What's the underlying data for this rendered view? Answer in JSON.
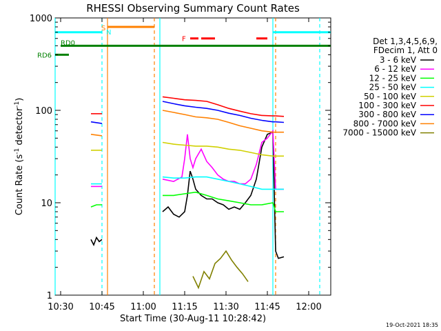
{
  "chart_data": {
    "type": "line",
    "title": "RHESSI Observing Summary Count Rates",
    "xlabel": "Start Time (30-Aug-11 10:28:42)",
    "ylabel_main": "Count Rate (s",
    "ylabel_sup1": "-1",
    "ylabel_mid": " detector",
    "ylabel_sup2": "-1",
    "ylabel_end": ")",
    "y_scale": "log",
    "ylim": [
      1,
      1000
    ],
    "xlim": [
      "10:28",
      "12:08"
    ],
    "x_ticks": [
      "10:30",
      "10:45",
      "11:00",
      "11:15",
      "11:30",
      "11:45",
      "12:00"
    ],
    "y_ticks": [
      "1",
      "10",
      "100",
      "1000"
    ],
    "legend_header": [
      "Det 1,3,4,5,6,9,",
      "FDecim 1, Att 0"
    ],
    "series": [
      {
        "name": "3 - 6 keV",
        "color": "#000000",
        "segments": [
          [
            [
              "10:41",
              4
            ],
            [
              "10:42",
              3.5
            ],
            [
              "10:43",
              4.2
            ],
            [
              "10:44",
              3.8
            ],
            [
              "10:45",
              4.0
            ]
          ],
          [
            [
              "11:07",
              8
            ],
            [
              "11:09",
              9
            ],
            [
              "11:11",
              7.5
            ],
            [
              "11:13",
              7
            ],
            [
              "11:15",
              8
            ],
            [
              "11:16",
              12
            ],
            [
              "11:17",
              22
            ],
            [
              "11:18",
              18
            ],
            [
              "11:19",
              14
            ],
            [
              "11:21",
              12
            ],
            [
              "11:23",
              11
            ],
            [
              "11:25",
              11
            ],
            [
              "11:27",
              10
            ],
            [
              "11:29",
              9.5
            ],
            [
              "11:31",
              8.5
            ],
            [
              "11:33",
              9
            ],
            [
              "11:35",
              8.5
            ],
            [
              "11:37",
              10
            ],
            [
              "11:39",
              12
            ],
            [
              "11:41",
              18
            ],
            [
              "11:43",
              40
            ],
            [
              "11:45",
              55
            ],
            [
              "11:47",
              58
            ],
            [
              "11:48",
              3
            ],
            [
              "11:49",
              2.5
            ],
            [
              "11:51",
              2.6
            ]
          ]
        ]
      },
      {
        "name": "6 - 12 keV",
        "color": "#ff00ff",
        "segments": [
          [
            [
              "10:41",
              15
            ],
            [
              "10:45",
              15
            ]
          ],
          [
            [
              "11:07",
              18
            ],
            [
              "11:11",
              17
            ],
            [
              "11:14",
              19
            ],
            [
              "11:15",
              30
            ],
            [
              "11:16",
              55
            ],
            [
              "11:17",
              30
            ],
            [
              "11:18",
              24
            ],
            [
              "11:19",
              30
            ],
            [
              "11:21",
              38
            ],
            [
              "11:23",
              28
            ],
            [
              "11:25",
              24
            ],
            [
              "11:27",
              20
            ],
            [
              "11:29",
              18
            ],
            [
              "11:31",
              17
            ],
            [
              "11:33",
              17
            ],
            [
              "11:35",
              16
            ],
            [
              "11:37",
              16
            ],
            [
              "11:39",
              18
            ],
            [
              "11:41",
              26
            ],
            [
              "11:43",
              45
            ],
            [
              "11:45",
              50
            ],
            [
              "11:47",
              60
            ],
            [
              "11:48",
              14
            ],
            [
              "11:51",
              14
            ]
          ]
        ]
      },
      {
        "name": "12 - 25 keV",
        "color": "#00ff00",
        "segments": [
          [
            [
              "10:41",
              9
            ],
            [
              "10:43",
              9.5
            ],
            [
              "10:45",
              9.5
            ]
          ],
          [
            [
              "11:07",
              12
            ],
            [
              "11:11",
              12
            ],
            [
              "11:15",
              12.5
            ],
            [
              "11:19",
              13
            ],
            [
              "11:23",
              12
            ],
            [
              "11:27",
              11
            ],
            [
              "11:31",
              10.5
            ],
            [
              "11:35",
              10
            ],
            [
              "11:39",
              9.5
            ],
            [
              "11:43",
              9.5
            ],
            [
              "11:47",
              10
            ],
            [
              "11:48",
              8
            ],
            [
              "11:51",
              8
            ]
          ]
        ]
      },
      {
        "name": "25 - 50 keV",
        "color": "#00ffff",
        "segments": [
          [
            [
              "10:41",
              16
            ],
            [
              "10:45",
              16
            ]
          ],
          [
            [
              "11:07",
              19
            ],
            [
              "11:11",
              18.5
            ],
            [
              "11:15",
              18.5
            ],
            [
              "11:19",
              19
            ],
            [
              "11:23",
              19
            ],
            [
              "11:27",
              18
            ],
            [
              "11:31",
              17
            ],
            [
              "11:35",
              16
            ],
            [
              "11:39",
              15
            ],
            [
              "11:43",
              14
            ],
            [
              "11:47",
              14
            ],
            [
              "11:48",
              14
            ],
            [
              "11:51",
              14
            ]
          ]
        ]
      },
      {
        "name": "50 - 100 keV",
        "color": "#d0d000",
        "segments": [
          [
            [
              "10:41",
              37
            ],
            [
              "10:45",
              37
            ]
          ],
          [
            [
              "11:07",
              45
            ],
            [
              "11:11",
              43
            ],
            [
              "11:15",
              42
            ],
            [
              "11:19",
              41
            ],
            [
              "11:23",
              41
            ],
            [
              "11:27",
              40
            ],
            [
              "11:31",
              38
            ],
            [
              "11:35",
              37
            ],
            [
              "11:39",
              35
            ],
            [
              "11:43",
              33
            ],
            [
              "11:47",
              32
            ],
            [
              "11:48",
              32
            ],
            [
              "11:51",
              32
            ]
          ]
        ]
      },
      {
        "name": "100 - 300 keV",
        "color": "#ff0000",
        "segments": [
          [
            [
              "10:41",
              92
            ],
            [
              "10:45",
              92
            ]
          ],
          [
            [
              "11:07",
              140
            ],
            [
              "11:11",
              135
            ],
            [
              "11:15",
              130
            ],
            [
              "11:19",
              128
            ],
            [
              "11:23",
              125
            ],
            [
              "11:27",
              115
            ],
            [
              "11:31",
              105
            ],
            [
              "11:35",
              98
            ],
            [
              "11:39",
              92
            ],
            [
              "11:43",
              88
            ],
            [
              "11:47",
              87
            ],
            [
              "11:48",
              87
            ],
            [
              "11:51",
              86
            ]
          ]
        ]
      },
      {
        "name": "300 - 800 keV",
        "color": "#0000ff",
        "segments": [
          [
            [
              "10:41",
              75
            ],
            [
              "10:45",
              72
            ]
          ],
          [
            [
              "11:07",
              125
            ],
            [
              "11:11",
              118
            ],
            [
              "11:15",
              112
            ],
            [
              "11:19",
              108
            ],
            [
              "11:23",
              105
            ],
            [
              "11:27",
              100
            ],
            [
              "11:31",
              93
            ],
            [
              "11:35",
              88
            ],
            [
              "11:39",
              82
            ],
            [
              "11:43",
              78
            ],
            [
              "11:47",
              75
            ],
            [
              "11:48",
              75
            ],
            [
              "11:51",
              74
            ]
          ]
        ]
      },
      {
        "name": "800 - 7000 keV",
        "color": "#ff8000",
        "segments": [
          [
            [
              "10:41",
              55
            ],
            [
              "10:45",
              53
            ]
          ],
          [
            [
              "11:07",
              100
            ],
            [
              "11:11",
              95
            ],
            [
              "11:15",
              90
            ],
            [
              "11:19",
              85
            ],
            [
              "11:23",
              83
            ],
            [
              "11:27",
              80
            ],
            [
              "11:31",
              74
            ],
            [
              "11:35",
              68
            ],
            [
              "11:39",
              64
            ],
            [
              "11:43",
              60
            ],
            [
              "11:47",
              58
            ],
            [
              "11:48",
              58
            ],
            [
              "11:51",
              58
            ]
          ]
        ]
      },
      {
        "name": "7000 - 15000 keV",
        "color": "#808000",
        "segments": [
          [
            [
              "11:18",
              1.6
            ],
            [
              "11:20",
              1.2
            ],
            [
              "11:22",
              1.8
            ],
            [
              "11:24",
              1.5
            ],
            [
              "11:26",
              2.2
            ],
            [
              "11:28",
              2.5
            ],
            [
              "11:30",
              3.0
            ],
            [
              "11:32",
              2.4
            ],
            [
              "11:34",
              2.0
            ],
            [
              "11:36",
              1.7
            ],
            [
              "11:38",
              1.4
            ]
          ]
        ]
      }
    ],
    "flags": [
      {
        "label": "RD6",
        "color": "#008000",
        "y": 400,
        "x0": "10:28",
        "x1": "10:33"
      },
      {
        "label": "RD0",
        "color": "#008000",
        "y": 500,
        "x0": "10:30",
        "x1": "12:08"
      }
    ],
    "flag_bars": [
      {
        "color": "#00ffff",
        "y": 700,
        "segments": [
          [
            "10:28",
            "10:45"
          ],
          [
            "11:47",
            "12:08"
          ]
        ]
      },
      {
        "color": "#ff8000",
        "y": 800,
        "segments": [
          [
            "10:47",
            "11:04"
          ]
        ]
      }
    ],
    "flare_label": "F",
    "flare_bars": {
      "color": "#ff0000",
      "y": 600,
      "segments": [
        [
          "11:17",
          "11:20"
        ],
        [
          "11:21",
          "11:26"
        ],
        [
          "11:41",
          "11:45"
        ]
      ]
    },
    "saa_label": "S",
    "night_label": "N",
    "vertical_markers": [
      {
        "color": "#00ffff",
        "style": "solid",
        "x": "10:28"
      },
      {
        "color": "#00ffff",
        "style": "dashed",
        "x": "10:45"
      },
      {
        "color": "#ff8000",
        "style": "solid",
        "x": "10:47"
      },
      {
        "color": "#ff8000",
        "style": "dashed",
        "x": "11:04"
      },
      {
        "color": "#00ffff",
        "style": "solid",
        "x": "11:06"
      },
      {
        "color": "#00ffff",
        "style": "solid",
        "x": "11:47"
      },
      {
        "color": "#ff8000",
        "style": "dashed",
        "x": "11:48"
      },
      {
        "color": "#00ffff",
        "style": "dashed",
        "x": "12:04"
      }
    ],
    "timestamp": "19-Oct-2021 18:35"
  }
}
